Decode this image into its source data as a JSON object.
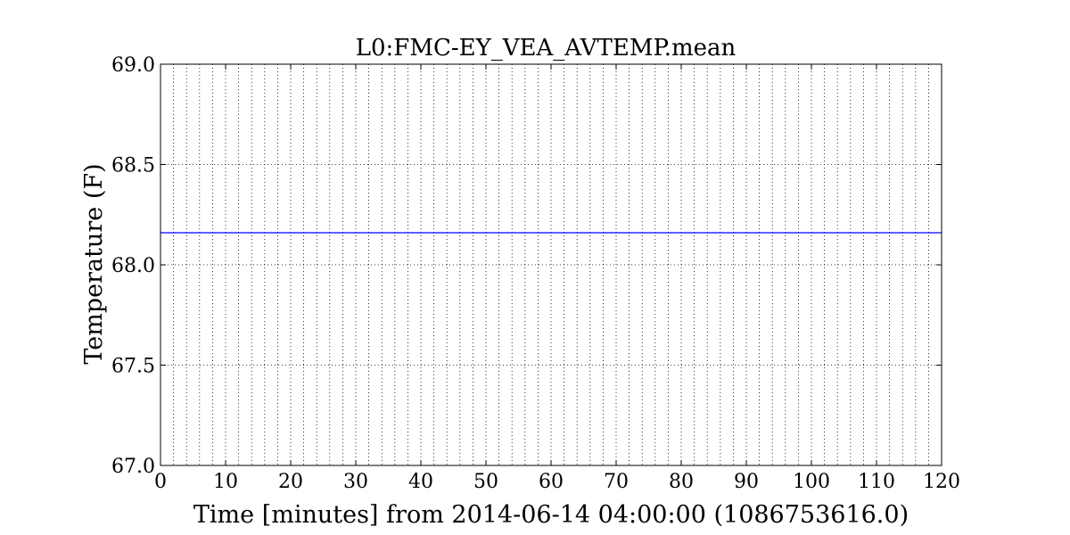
{
  "chart_data": {
    "type": "line",
    "title": "L0:FMC-EY_VEA_AVTEMP.mean",
    "xlabel": "Time [minutes] from 2014-06-14 04:00:00 (1086753616.0)",
    "ylabel": "Temperature (F)",
    "xlim": [
      0,
      120
    ],
    "ylim": [
      67.0,
      69.0
    ],
    "x_ticks": [
      0,
      10,
      20,
      30,
      40,
      50,
      60,
      70,
      80,
      90,
      100,
      110,
      120
    ],
    "x_tick_labels": [
      "0",
      "10",
      "20",
      "30",
      "40",
      "50",
      "60",
      "70",
      "80",
      "90",
      "100",
      "110",
      "120"
    ],
    "y_ticks": [
      67.0,
      67.5,
      68.0,
      68.5,
      69.0
    ],
    "y_tick_labels": [
      "67.0",
      "67.5",
      "68.0",
      "68.5",
      "69.0"
    ],
    "x_minor_step": 2,
    "grid": true,
    "series": [
      {
        "color": "#0000ff",
        "x": [
          0,
          120
        ],
        "y": [
          68.16,
          68.16
        ]
      }
    ]
  }
}
